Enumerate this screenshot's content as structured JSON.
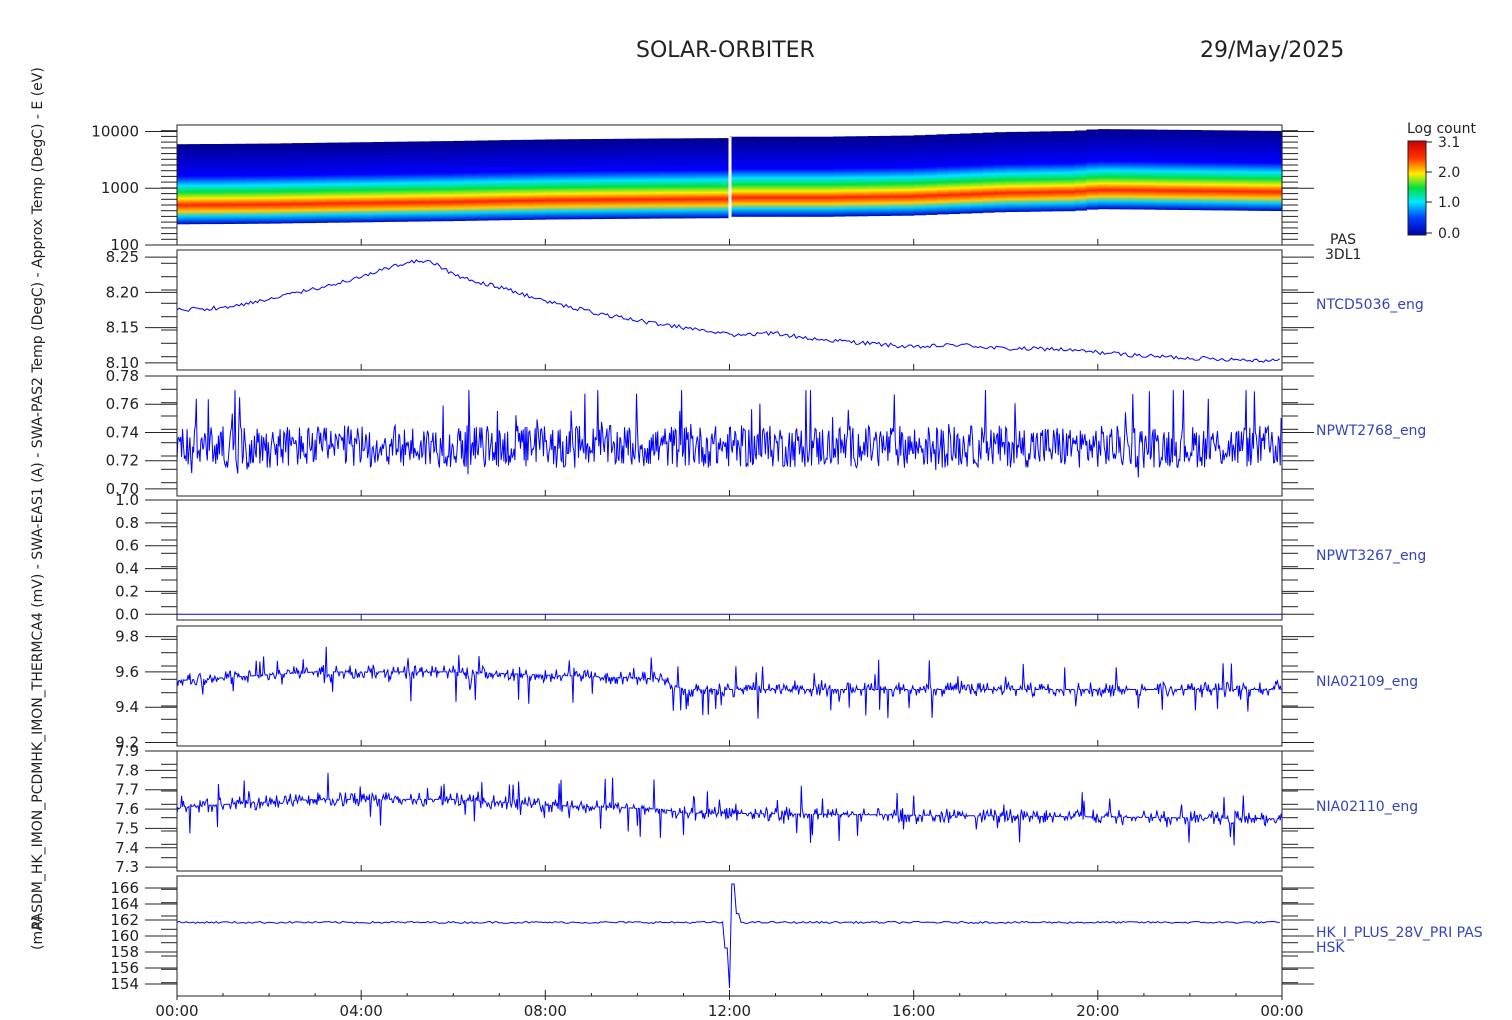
{
  "header": {
    "title": "SOLAR-ORBITER",
    "date": "29/May/2025"
  },
  "colorbar": {
    "title": "Log count",
    "ticks": [
      "3.1",
      "2.0",
      "1.0",
      "0.0"
    ]
  },
  "panel_labels": {
    "y_text": "(mA)",
    "y_text_overlap": "PASDM_HK_IMON_PCDMHK_IMON_THERMCA4 (mV) - SWA-EAS1 (A) - SWA-PAS2 Temp (DegC) - Approx Temp (DegC) - E (eV)"
  },
  "chart_data": [
    {
      "type": "heatmap",
      "name": "PAS 3DL1",
      "right_label": [
        "PAS",
        "3DL1"
      ],
      "ylabel": "E (eV)",
      "yscale": "log",
      "ylim": [
        100,
        13000
      ],
      "y_ticks": [
        "10000",
        "1000",
        "100"
      ],
      "colorbar": {
        "label": "Log count",
        "range": [
          0.0,
          3.1
        ]
      },
      "peak_energy_profile": {
        "x": [
          0,
          2,
          4,
          6,
          8,
          10,
          11.9,
          12.1,
          14,
          16,
          18,
          19.5,
          20,
          22,
          24
        ],
        "y": [
          700,
          720,
          760,
          800,
          850,
          880,
          900,
          950,
          950,
          1000,
          1150,
          1200,
          1300,
          1250,
          1200
        ]
      },
      "gap_at": 12.0
    },
    {
      "type": "line",
      "right_label": "NTCD5036_eng",
      "ylim": [
        8.09,
        8.26
      ],
      "y_ticks": [
        "8.25",
        "8.20",
        "8.15",
        "8.10"
      ],
      "x": [
        0,
        1,
        2,
        3,
        4,
        5,
        5.5,
        6,
        7,
        8,
        9,
        10,
        11,
        12,
        13,
        14,
        15,
        16,
        17,
        18,
        19,
        20,
        21,
        22,
        23,
        24
      ],
      "y": [
        8.175,
        8.178,
        8.19,
        8.205,
        8.222,
        8.243,
        8.245,
        8.225,
        8.207,
        8.188,
        8.172,
        8.16,
        8.15,
        8.14,
        8.142,
        8.133,
        8.128,
        8.122,
        8.126,
        8.12,
        8.12,
        8.115,
        8.11,
        8.107,
        8.105,
        8.103
      ]
    },
    {
      "type": "line",
      "right_label": "NPWT2768_eng",
      "ylim": [
        0.695,
        0.78
      ],
      "y_ticks": [
        "0.78",
        "0.76",
        "0.74",
        "0.72",
        "0.70"
      ],
      "mean": 0.73,
      "range": [
        0.705,
        0.77
      ]
    },
    {
      "type": "line",
      "right_label": "NPWT3267_eng",
      "ylim": [
        -0.05,
        1.0
      ],
      "y_ticks": [
        "1.0",
        "0.8",
        "0.6",
        "0.4",
        "0.2",
        "0.0"
      ],
      "constant": 0.0
    },
    {
      "type": "line",
      "right_label": "NIA02109_eng",
      "ylim": [
        9.18,
        9.86
      ],
      "y_ticks": [
        "9.8",
        "9.6",
        "9.4",
        "9.2"
      ],
      "baseline": {
        "x": [
          0,
          3,
          6,
          10.5,
          11,
          24
        ],
        "y": [
          9.55,
          9.6,
          9.6,
          9.56,
          9.5,
          9.5
        ]
      },
      "range": [
        9.23,
        9.85
      ]
    },
    {
      "type": "line",
      "right_label": "NIA02110_eng",
      "ylim": [
        7.28,
        7.9
      ],
      "y_ticks": [
        "7.9",
        "7.8",
        "7.7",
        "7.6",
        "7.5",
        "7.4",
        "7.3"
      ],
      "baseline": {
        "x": [
          0,
          3,
          6,
          8,
          10.5,
          11,
          24
        ],
        "y": [
          7.61,
          7.65,
          7.65,
          7.62,
          7.6,
          7.58,
          7.55
        ]
      },
      "range": [
        7.33,
        7.87
      ]
    },
    {
      "type": "line",
      "right_label": [
        "HK_I_PLUS_28V_PRI PAS",
        "HSK"
      ],
      "ylim": [
        152.5,
        167.5
      ],
      "y_ticks": [
        "166",
        "164",
        "162",
        "160",
        "158",
        "156",
        "154"
      ],
      "baseline": 161.7,
      "spike": {
        "x": [
          11.95,
          12.0,
          12.1
        ],
        "y": [
          154.0,
          153.5,
          166.5
        ]
      }
    }
  ],
  "x_axis": {
    "range": [
      0,
      24
    ],
    "tick_labels": [
      "00:00",
      "04:00",
      "08:00",
      "12:00",
      "16:00",
      "20:00",
      "00:00"
    ]
  }
}
